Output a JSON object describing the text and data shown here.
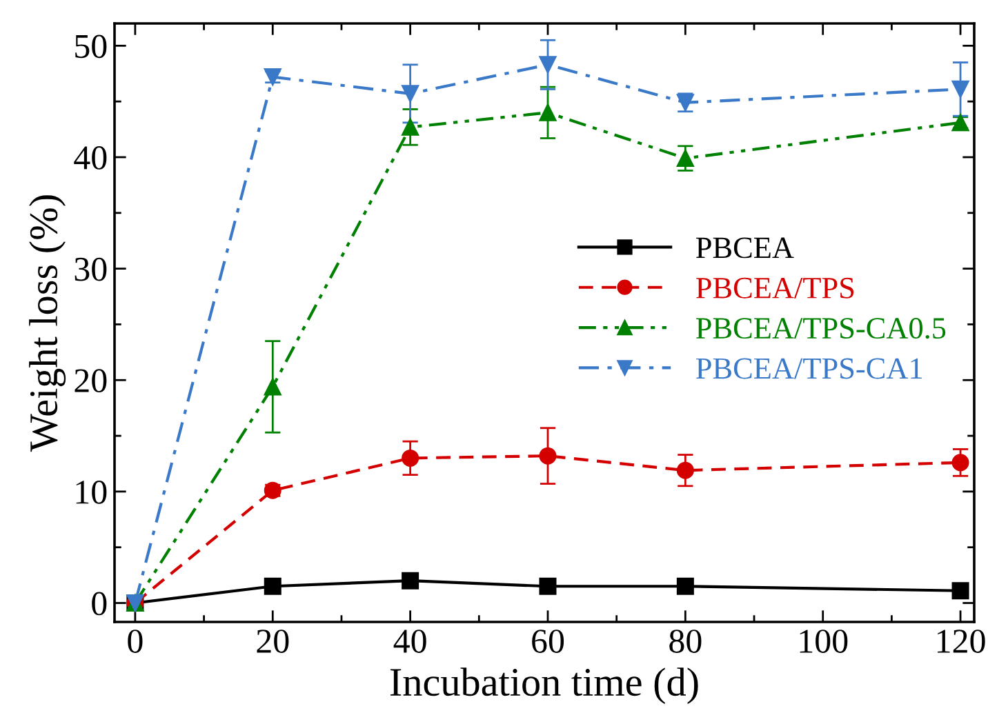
{
  "chart_data": {
    "type": "line",
    "xlabel": "Incubation time (d)",
    "ylabel": "Weight loss (%)",
    "x": [
      0,
      20,
      40,
      60,
      80,
      120
    ],
    "xlim": [
      -3,
      122
    ],
    "ylim": [
      -1.7,
      52
    ],
    "xticks": [
      0,
      {
        "value": 10,
        "label": null
      },
      20,
      {
        "value": 30,
        "label": null
      },
      40,
      {
        "value": 50,
        "label": null
      },
      60,
      {
        "value": 70,
        "label": null
      },
      80,
      {
        "value": 90,
        "label": null
      },
      100,
      {
        "value": 110,
        "label": null
      },
      120
    ],
    "yticks": [
      0,
      {
        "value": 5,
        "label": null
      },
      10,
      {
        "value": 15,
        "label": null
      },
      20,
      {
        "value": 25,
        "label": null
      },
      30,
      {
        "value": 35,
        "label": null
      },
      40,
      {
        "value": 45,
        "label": null
      },
      50
    ],
    "grid": false,
    "legend": "right",
    "series": [
      {
        "name": "PBCEA",
        "color": "#000000",
        "marker": "square",
        "line_style": "solid",
        "values": [
          0,
          1.5,
          2.0,
          1.5,
          1.5,
          1.1
        ],
        "errors": [
          null,
          null,
          null,
          null,
          null,
          null
        ]
      },
      {
        "name": "PBCEA/TPS",
        "color": "#d40000",
        "marker": "circle",
        "line_style": "dashed",
        "values": [
          0,
          10.1,
          13.0,
          13.2,
          11.9,
          12.6
        ],
        "errors": [
          null,
          0.5,
          1.5,
          2.5,
          1.4,
          1.2
        ]
      },
      {
        "name": "PBCEA/TPS-CA0.5",
        "color": "#008000",
        "marker": "triangle",
        "line_style": "dashdotdot",
        "values": [
          0,
          19.4,
          42.7,
          44.0,
          39.9,
          43.1
        ],
        "errors": [
          null,
          4.1,
          1.6,
          2.3,
          1.1,
          0.5
        ]
      },
      {
        "name": "PBCEA/TPS-CA1",
        "color": "#3a78c8",
        "marker": "triangle_down",
        "line_style": "dashdot",
        "values": [
          0,
          47.2,
          45.7,
          48.3,
          44.9,
          46.1
        ],
        "errors": [
          null,
          0.5,
          2.6,
          2.2,
          0.8,
          2.4
        ]
      }
    ]
  }
}
